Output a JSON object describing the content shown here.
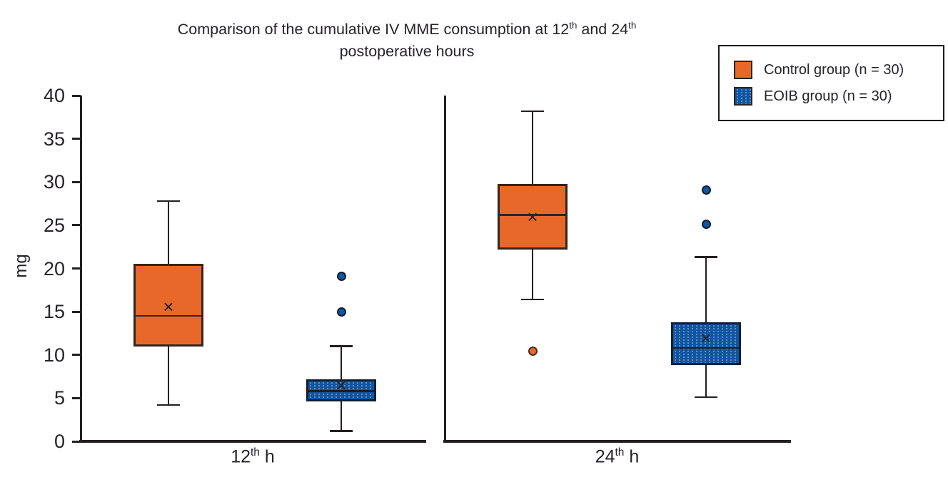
{
  "title": {
    "line1_parts": [
      {
        "text": "Comparison of the cumulative IV MME consumption at 12"
      },
      {
        "text": "th",
        "sup": true
      },
      {
        "text": " and 24"
      },
      {
        "text": "th",
        "sup": true
      }
    ],
    "line2": "postoperative hours"
  },
  "legend": {
    "items": [
      {
        "label": "Control group (n = 30)",
        "series": "control"
      },
      {
        "label": "EOIB group (n = 30)",
        "series": "eoib"
      }
    ]
  },
  "chart_data": {
    "type": "boxplot",
    "title": "Comparison of the cumulative IV MME consumption at 12th and 24th postoperative hours",
    "ylabel": "mg",
    "ylim": [
      0,
      40
    ],
    "yticks": [
      0,
      5,
      10,
      15,
      20,
      25,
      30,
      35,
      40
    ],
    "legend_position": "top-right",
    "grid": false,
    "panels": [
      {
        "x_label_parts": [
          {
            "text": "12"
          },
          {
            "text": "th",
            "sup": true
          },
          {
            "text": " h"
          }
        ],
        "x_label": "12th h",
        "boxes": [
          {
            "series": "control",
            "group": "Control group (n = 30)",
            "whisker_low": 4.2,
            "q1": 11.0,
            "median": 14.5,
            "mean": 15.6,
            "q3": 20.5,
            "whisker_high": 27.8,
            "outliers": []
          },
          {
            "series": "eoib",
            "group": "EOIB group (n = 30)",
            "whisker_low": 1.2,
            "q1": 4.6,
            "median": 5.8,
            "mean": 6.5,
            "q3": 7.2,
            "whisker_high": 11.0,
            "outliers": [
              15.0,
              19.1
            ]
          }
        ]
      },
      {
        "x_label_parts": [
          {
            "text": "24"
          },
          {
            "text": "th",
            "sup": true
          },
          {
            "text": " h"
          }
        ],
        "x_label": "24th h",
        "boxes": [
          {
            "series": "control",
            "group": "Control group (n = 30)",
            "whisker_low": 16.4,
            "q1": 22.2,
            "median": 26.2,
            "mean": 26.0,
            "q3": 29.8,
            "whisker_high": 38.2,
            "outliers": [
              10.4
            ]
          },
          {
            "series": "eoib",
            "group": "EOIB group (n = 30)",
            "whisker_low": 5.1,
            "q1": 8.8,
            "median": 10.8,
            "mean": 12.0,
            "q3": 13.8,
            "whisker_high": 21.3,
            "outliers": [
              25.1,
              29.1
            ]
          }
        ]
      }
    ],
    "colors": {
      "control_fill": "#E8682A",
      "control_edge": "#32271F",
      "control_outlier_edge": "#4A2D1A",
      "eoib_fill": "#0F55A1",
      "eoib_edge": "#14202E",
      "eoib_outlier_edge": "#0E1C2E",
      "axis_line": "#231F20",
      "text": "#262329"
    }
  }
}
